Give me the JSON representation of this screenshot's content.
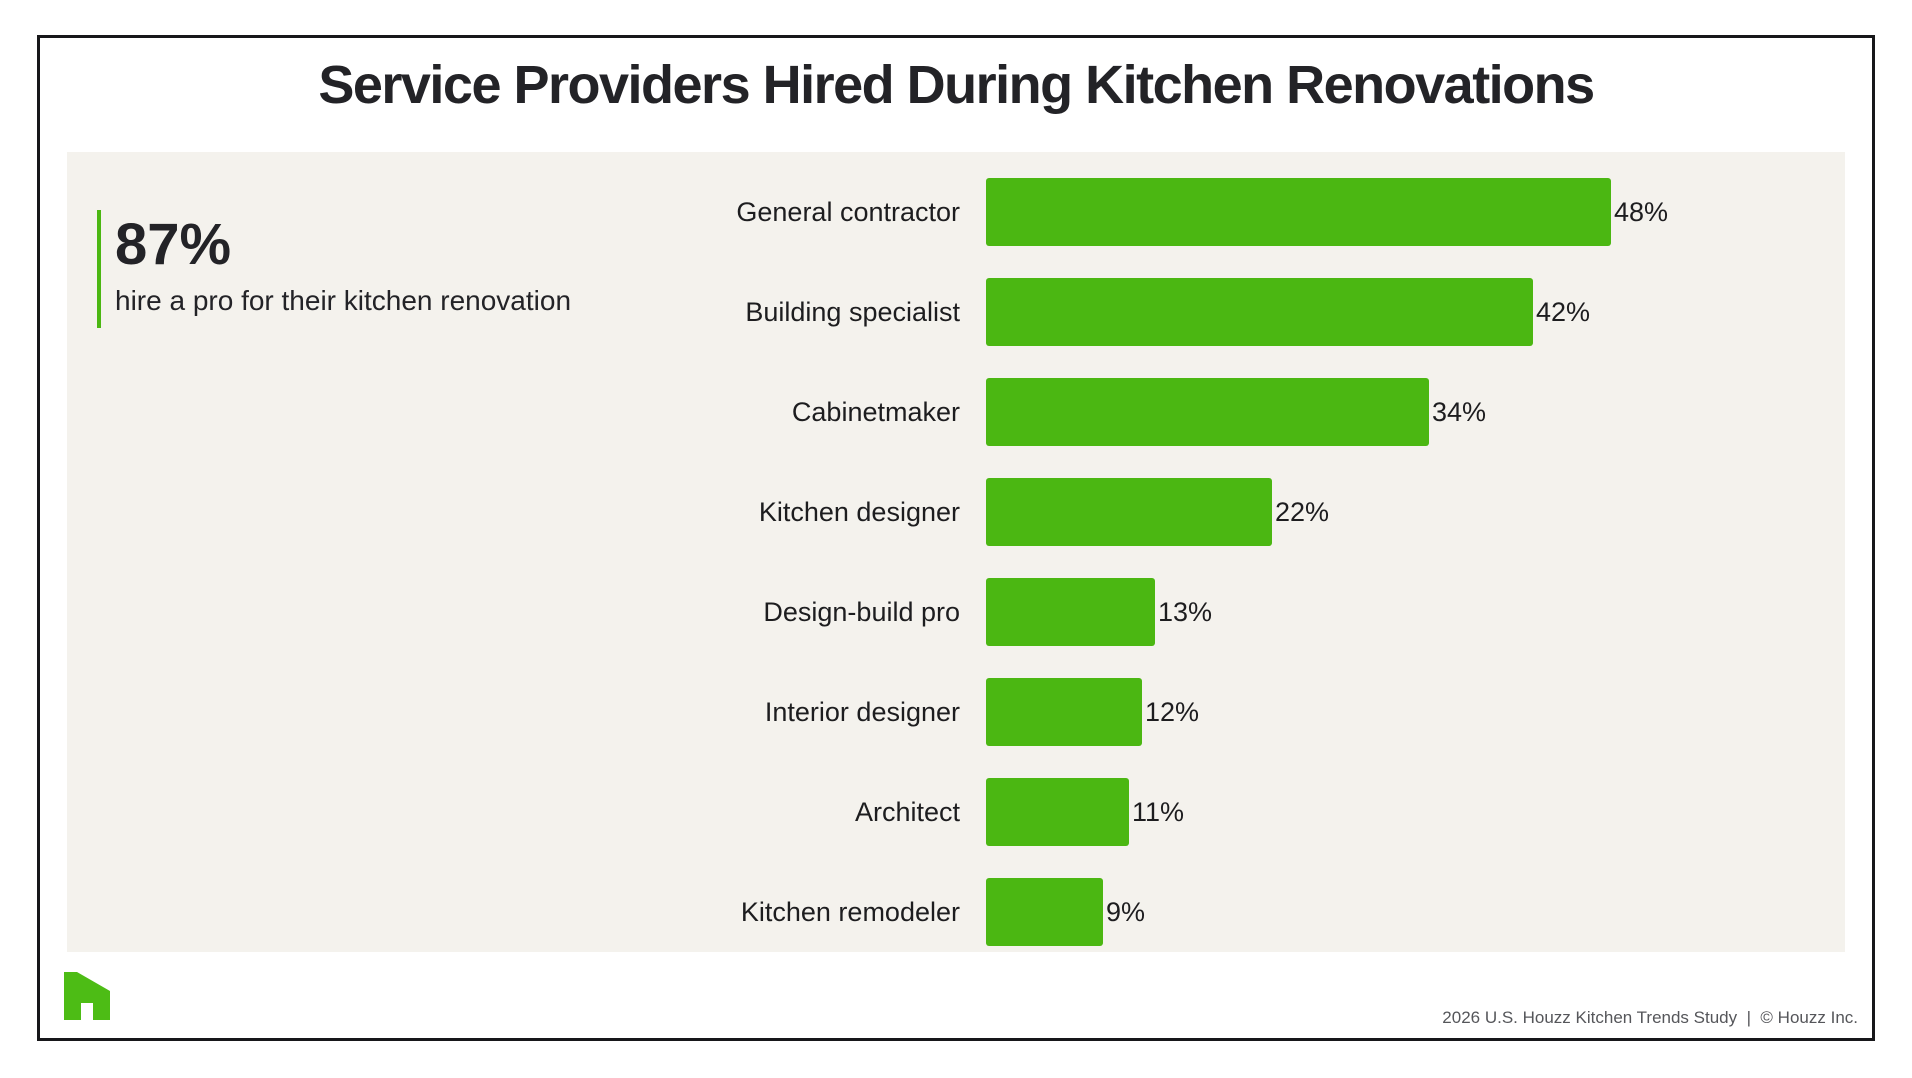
{
  "title": "Service Providers Hired During Kitchen Renovations",
  "stat": {
    "value": "87%",
    "caption": "hire a pro for their kitchen renovation"
  },
  "chart_data": {
    "type": "bar",
    "orientation": "horizontal",
    "title": "Service Providers Hired During Kitchen Renovations",
    "categories": [
      "General contractor",
      "Building specialist",
      "Cabinetmaker",
      "Kitchen designer",
      "Design-build pro",
      "Interior designer",
      "Architect",
      "Kitchen remodeler"
    ],
    "values": [
      48,
      42,
      34,
      22,
      13,
      12,
      11,
      9
    ],
    "value_labels": [
      "48%",
      "42%",
      "34%",
      "22%",
      "13%",
      "12%",
      "11%",
      "9%"
    ],
    "xlim": [
      0,
      50
    ],
    "grid": false,
    "legend": false,
    "bar_color": "#4BB712",
    "annotation": "87% hire a pro for their kitchen renovation"
  },
  "footer": {
    "text": "2026 U.S. Houzz Kitchen Trends Study  |  © Houzz Inc."
  },
  "logo": {
    "name": "houzz-logo",
    "color": "#4DBC15"
  },
  "colors": {
    "bar_green": "#4BB712",
    "accent_green": "#4BB712",
    "panel_background": "#F4F2ED",
    "text_dark": "#232327",
    "footer_gray": "#55565A",
    "frame_border": "#17171A"
  }
}
